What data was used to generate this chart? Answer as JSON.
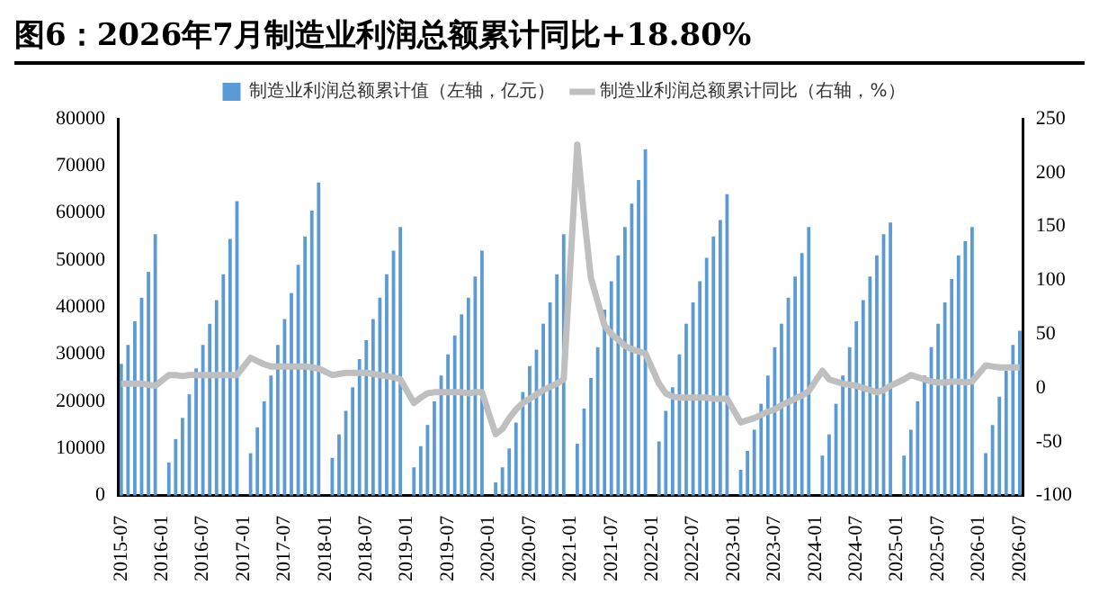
{
  "chart_data": {
    "type": "bar",
    "title": "图6：2026年7月制造业利润总额累计同比+18.80%",
    "categories": [
      "2015-07",
      null,
      null,
      null,
      null,
      null,
      "2016-01",
      null,
      null,
      null,
      null,
      null,
      "2016-07",
      null,
      null,
      null,
      null,
      null,
      "2017-01",
      null,
      null,
      null,
      null,
      null,
      "2017-07",
      null,
      null,
      null,
      null,
      null,
      "2018-01",
      null,
      null,
      null,
      null,
      null,
      "2018-07",
      null,
      null,
      null,
      null,
      null,
      "2019-01",
      null,
      null,
      null,
      null,
      null,
      "2019-07",
      null,
      null,
      null,
      null,
      null,
      "2020-01",
      null,
      null,
      null,
      null,
      null,
      "2020-07",
      null,
      null,
      null,
      null,
      null,
      "2021-01",
      null,
      null,
      null,
      null,
      null,
      "2021-07",
      null,
      null,
      null,
      null,
      null,
      "2022-01",
      null,
      null,
      null,
      null,
      null,
      "2022-07",
      null,
      null,
      null,
      null,
      null,
      "2023-01",
      null,
      null,
      null,
      null,
      null,
      "2023-07",
      null,
      null,
      null,
      null,
      null,
      "2024-01",
      null,
      null,
      null,
      null,
      null,
      "2024-07",
      null,
      null,
      null,
      null,
      null,
      "2025-01",
      null,
      null,
      null,
      null,
      null,
      "2025-07",
      null,
      null,
      null,
      null,
      null,
      "2026-01",
      null,
      null,
      null,
      null,
      null,
      "2026-07"
    ],
    "series": [
      {
        "name": "制造业利润总额累计值（左轴，亿元）",
        "color": "#5b9bd5",
        "values": [
          28000,
          32000,
          37000,
          42000,
          47500,
          55500,
          null,
          7000,
          12000,
          16500,
          21500,
          27000,
          32000,
          36500,
          41500,
          47000,
          54500,
          62500,
          null,
          9000,
          14500,
          20000,
          25500,
          32000,
          37500,
          43000,
          49000,
          55000,
          60500,
          66500,
          null,
          8000,
          13000,
          18000,
          23000,
          29000,
          33000,
          37500,
          42000,
          47000,
          52000,
          57000,
          null,
          6000,
          10500,
          15000,
          20000,
          25500,
          30000,
          34000,
          38500,
          42000,
          46500,
          52000,
          null,
          2800,
          6000,
          10000,
          15500,
          22000,
          27500,
          31000,
          36500,
          41000,
          47000,
          55500,
          null,
          11000,
          18500,
          25000,
          31500,
          39500,
          45500,
          51000,
          57000,
          62000,
          67000,
          73500,
          null,
          11500,
          18000,
          23000,
          30000,
          36500,
          41000,
          45500,
          50500,
          55000,
          58500,
          64000,
          null,
          5500,
          9500,
          14000,
          19500,
          25500,
          31500,
          36500,
          42000,
          46500,
          51500,
          57000,
          null,
          8500,
          13000,
          19500,
          25500,
          31500,
          37000,
          41500,
          46500,
          51000,
          55500,
          58000,
          null,
          8500,
          14000,
          20000,
          25500,
          31500,
          36500,
          41000,
          46000,
          51000,
          54000,
          57000,
          null,
          9000,
          15000,
          21000,
          26500,
          32000,
          35000
        ]
      },
      {
        "name": "制造业利润总额累计同比（右轴，%）",
        "type": "line",
        "axis": "y2",
        "color": "#bfbfbf",
        "values": [
          4,
          4,
          4,
          4,
          3,
          2,
          null,
          12,
          12,
          11,
          12,
          12,
          12,
          12,
          12,
          12,
          12,
          12,
          null,
          28,
          25,
          22,
          20,
          20,
          20,
          20,
          20,
          20,
          19,
          18,
          null,
          12,
          13,
          14,
          14,
          14,
          14,
          13,
          12,
          11,
          10,
          8,
          null,
          -14,
          -9,
          -5,
          -4,
          -4,
          -4,
          -4,
          -4,
          -5,
          -4,
          -4,
          null,
          -43,
          -38,
          -28,
          -20,
          -14,
          -10,
          -6,
          -2,
          1,
          4,
          8,
          null,
          226,
          160,
          102,
          80,
          58,
          50,
          45,
          39,
          36,
          34,
          32,
          null,
          4,
          -5,
          -8,
          -9,
          -9,
          -9,
          -9,
          -9,
          -10,
          -10,
          -10,
          null,
          -32,
          -30,
          -28,
          -25,
          -22,
          -20,
          -16,
          -13,
          -10,
          -7,
          -3,
          null,
          16,
          8,
          6,
          4,
          3,
          2,
          0,
          -2,
          -4,
          -2,
          2,
          null,
          8,
          12,
          10,
          8,
          6,
          5,
          5,
          6,
          6,
          5,
          6,
          null,
          21,
          20,
          19,
          19,
          19,
          19
        ]
      }
    ],
    "ylim": [
      0,
      80000
    ],
    "yticks": [
      0,
      10000,
      20000,
      30000,
      40000,
      50000,
      60000,
      70000,
      80000
    ],
    "y2lim": [
      -100,
      250
    ],
    "y2ticks": [
      -100,
      -50,
      0,
      50,
      100,
      150,
      200,
      250
    ],
    "legend": "top"
  }
}
